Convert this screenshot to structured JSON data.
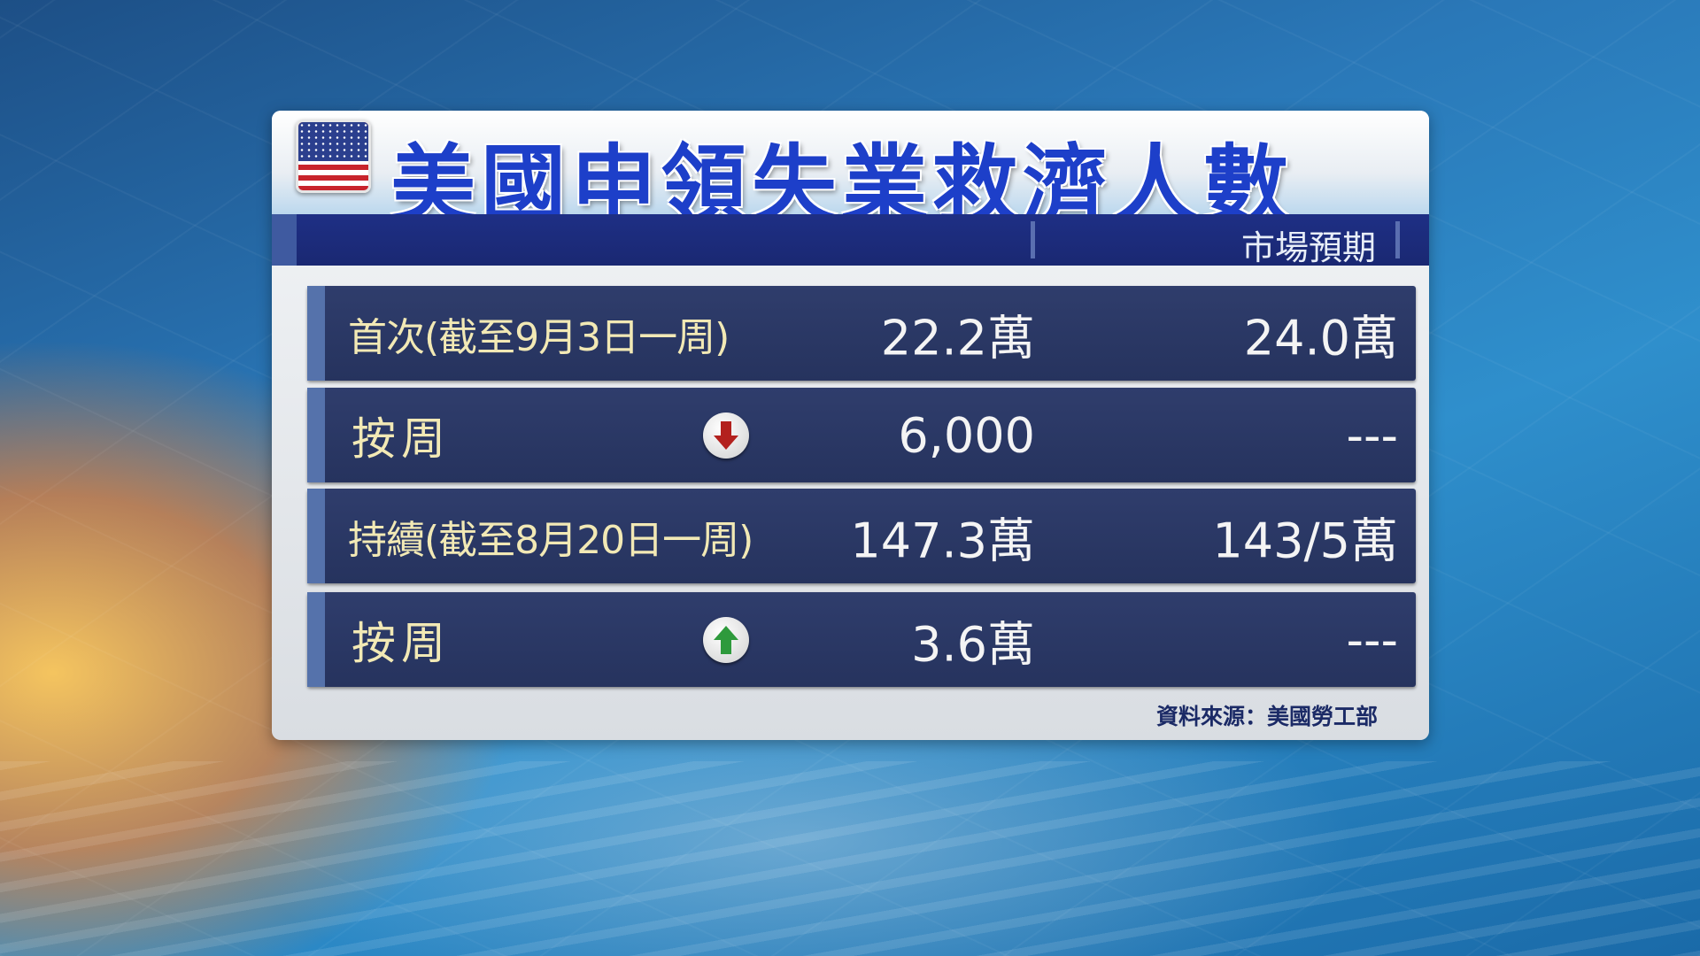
{
  "title": "美國申領失業救濟人數",
  "header": {
    "expectation_label": "市場預期"
  },
  "rows": [
    {
      "label": "首次(截至9月3日一周)",
      "value": "22.2萬",
      "expectation": "24.0萬",
      "arrow": null
    },
    {
      "label": "按周",
      "value": "6,000",
      "expectation": "---",
      "arrow": "down",
      "arrow_color": "#b3211e"
    },
    {
      "label": "持續(截至8月20日一周)",
      "value": "147.3萬",
      "expectation": "143/5萬",
      "arrow": null
    },
    {
      "label": "按周",
      "value": "3.6萬",
      "expectation": "---",
      "arrow": "up",
      "arrow_color": "#2e9a3c"
    }
  ],
  "source": "資料來源：美國勞工部",
  "colors": {
    "title": "#1d3fc9",
    "row_bg": "#2a375f",
    "label_text": "#f2e9b5"
  }
}
